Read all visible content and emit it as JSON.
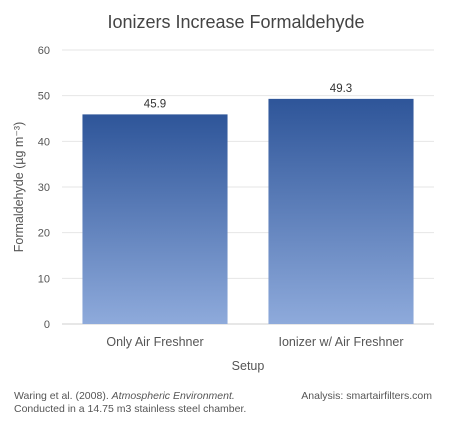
{
  "chart_data": {
    "type": "bar",
    "title": "Ionizers Increase Formaldehyde",
    "xlabel": "Setup",
    "ylabel": "Formaldehyde (µg m⁻³)",
    "categories": [
      "Only Air Freshner",
      "Ionizer w/ Air Freshner"
    ],
    "values": [
      45.9,
      49.3
    ],
    "data_labels": [
      "45.9",
      "49.3"
    ],
    "ylim": [
      0,
      60
    ],
    "yticks": [
      0,
      10,
      20,
      30,
      40,
      50,
      60
    ],
    "grid": true,
    "bar_color_top": "#2e5599",
    "bar_color_bottom": "#8eaadb"
  },
  "footer": {
    "citation_authors": "Waring et al. (2008).",
    "citation_journal": "Atmospheric Environment.",
    "citation_note": "Conducted in a 14.75 m3 stainless steel chamber.",
    "analysis": "Analysis: smartairfilters.com"
  }
}
